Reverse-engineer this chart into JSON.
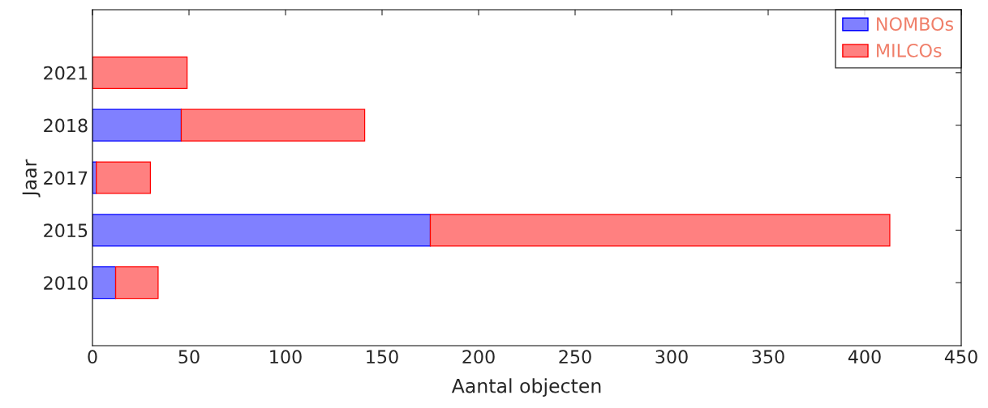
{
  "chart_data": {
    "type": "bar",
    "orientation": "horizontal",
    "stacked": true,
    "xlabel": "Aantal objecten",
    "ylabel": "Jaar",
    "categories": [
      "2021",
      "2018",
      "2017",
      "2015",
      "2010"
    ],
    "series": [
      {
        "name": "NOMBOs",
        "color": "#8080ff",
        "values": [
          0,
          46,
          2,
          175,
          12
        ]
      },
      {
        "name": "MILCOs",
        "color": "#ff8080",
        "values": [
          49,
          95,
          28,
          238,
          22
        ]
      }
    ],
    "xlim": [
      0,
      450
    ],
    "xticks": [
      0,
      50,
      100,
      150,
      200,
      250,
      300,
      350,
      400,
      450
    ],
    "grid": false,
    "legend": "top right"
  }
}
